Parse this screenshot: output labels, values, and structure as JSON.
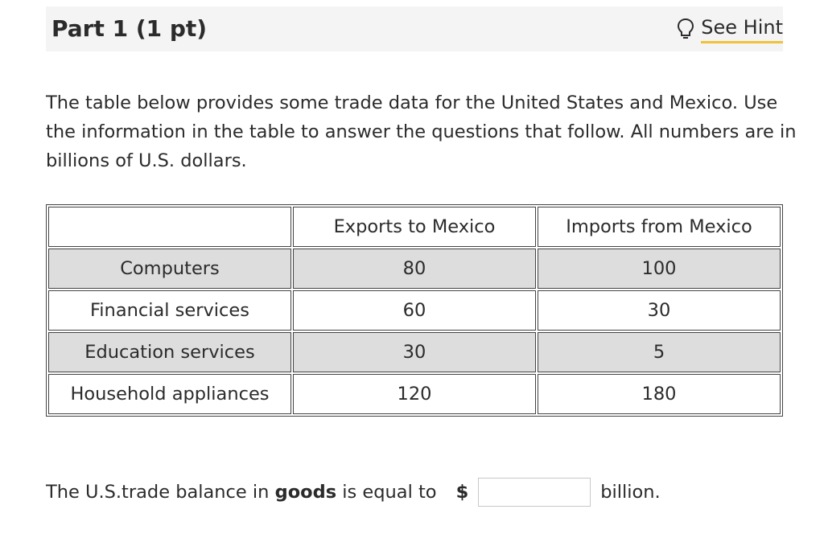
{
  "header": {
    "part_title": "Part 1 (1 pt)",
    "hint_label": "See Hint",
    "hint_icon": "lightbulb-icon",
    "hint_underline_color": "#f0c23b"
  },
  "intro": "The table below provides some trade data for the United States and Mexico. Use the information in the table to answer the questions that follow. All numbers are in billions of U.S. dollars.",
  "table": {
    "columns": [
      "",
      "Exports to Mexico",
      "Imports from Mexico"
    ],
    "rows": [
      {
        "label": "Computers",
        "exports": "80",
        "imports": "100"
      },
      {
        "label": "Financial services",
        "exports": "60",
        "imports": "30"
      },
      {
        "label": "Education services",
        "exports": "30",
        "imports": "5"
      },
      {
        "label": "Household appliances",
        "exports": "120",
        "imports": "180"
      }
    ],
    "shaded_row_color": "#dddddd"
  },
  "question": {
    "prefix": "The U.S.trade balance in ",
    "emphasis": "goods",
    "suffix": " is equal to",
    "currency": "$",
    "answer_value": "",
    "unit": "billion."
  }
}
